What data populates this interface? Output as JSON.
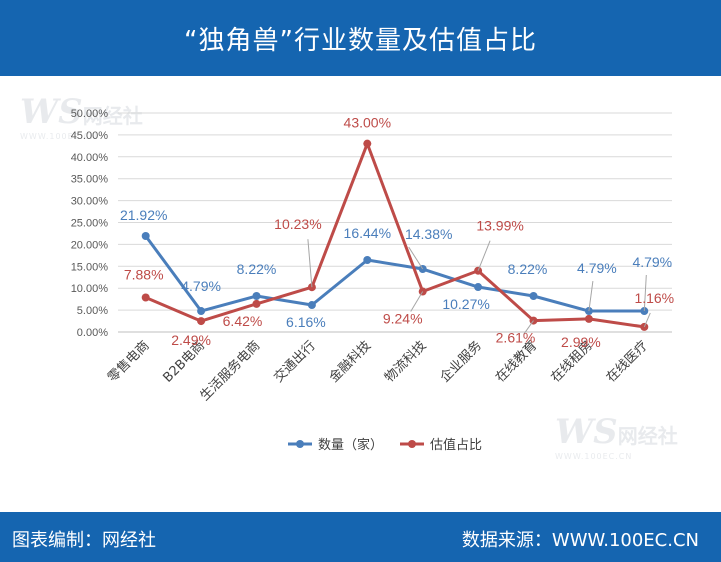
{
  "header": {
    "title": "“独角兽”行业数量及估值占比"
  },
  "footer": {
    "editor": "图表编制：网经社",
    "source": "数据来源：WWW.100EC.CN"
  },
  "watermark": {
    "logo": "WS",
    "name": "网经社",
    "url": "WWW.100EC.CN",
    "tagline": "网 经 社 电 子 商 务 平 台"
  },
  "chart_data": {
    "type": "line",
    "title": "",
    "categories": [
      "零售电商",
      "B2B电商",
      "生活服务电商",
      "交通出行",
      "金融科技",
      "物流科技",
      "企业服务",
      "在线教育",
      "在线租房",
      "在线医疗"
    ],
    "ylim": [
      0,
      50
    ],
    "yticks": [
      "0.00%",
      "5.00%",
      "10.00%",
      "15.00%",
      "20.00%",
      "25.00%",
      "30.00%",
      "35.00%",
      "40.00%",
      "45.00%",
      "50.00%"
    ],
    "grid": true,
    "legend_position": "bottom",
    "series": [
      {
        "name": "数量（家）",
        "color": "#4a7ebb",
        "values": [
          21.92,
          4.79,
          8.22,
          6.16,
          16.44,
          14.38,
          10.27,
          8.22,
          4.79,
          4.79
        ],
        "labels": [
          "21.92%",
          "4.79%",
          "8.22%",
          "6.16%",
          "16.44%",
          "14.38%",
          "10.27%",
          "8.22%",
          "4.79%",
          "4.79%"
        ]
      },
      {
        "name": "估值占比",
        "color": "#be4b48",
        "values": [
          7.88,
          2.49,
          6.42,
          10.23,
          43.0,
          9.24,
          13.99,
          2.61,
          2.99,
          1.16
        ],
        "labels": [
          "7.88%",
          "2.49%",
          "6.42%",
          "10.23%",
          "43.00%",
          "9.24%",
          "13.99%",
          "2.61%",
          "2.99%",
          "1.16%"
        ]
      }
    ]
  }
}
